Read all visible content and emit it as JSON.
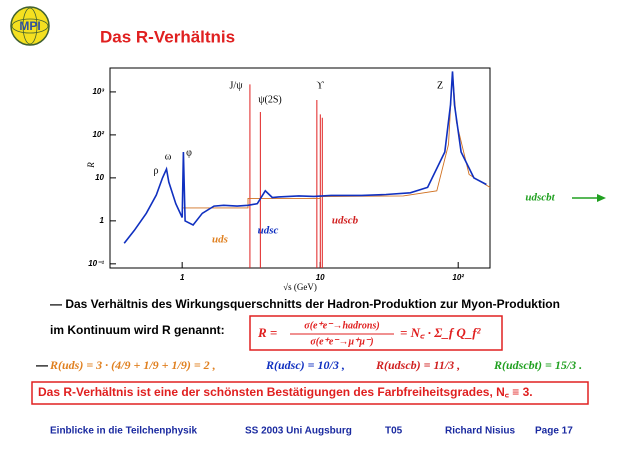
{
  "header": {
    "logo": "MPI",
    "title": "Das R-Verhältnis"
  },
  "chart_data": {
    "type": "line",
    "xlabel": "√s (GeV)",
    "ylabel": "R",
    "log_x": true,
    "log_y": true,
    "xlim": [
      0.3,
      170
    ],
    "ylim": [
      0.08,
      3600
    ],
    "xticks": [
      1,
      10,
      {
        "value": 100,
        "label": "10²"
      }
    ],
    "yticks": [
      {
        "value": 0.1,
        "label": "10⁻¹"
      },
      1,
      10,
      {
        "value": 100,
        "label": "10²"
      },
      {
        "value": 1000,
        "label": "10³"
      }
    ],
    "series": [
      {
        "color": "#1030c0",
        "x": [
          0.38,
          0.45,
          0.55,
          0.65,
          0.72,
          0.77,
          0.8,
          0.9,
          1.0,
          1.02,
          1.05,
          1.2,
          1.4,
          1.7,
          2.0,
          2.5,
          3.0,
          3.5,
          4.0,
          4.5,
          5,
          7,
          9,
          12,
          20,
          30,
          45,
          60,
          80,
          88,
          91,
          94,
          105,
          130,
          160
        ],
        "values": [
          0.3,
          0.6,
          1.5,
          4,
          10,
          16,
          8,
          2.5,
          1.2,
          40,
          1.0,
          0.8,
          1.5,
          2.2,
          2.3,
          2.2,
          2.3,
          2.5,
          5,
          3.5,
          3.6,
          3.8,
          3.7,
          3.9,
          3.9,
          4.1,
          4.5,
          6,
          40,
          500,
          3000,
          500,
          40,
          10,
          7
        ]
      },
      {
        "color": "#d07020",
        "x": [
          1,
          3,
          3,
          10,
          10,
          40,
          70,
          85,
          91,
          97,
          120,
          170
        ],
        "values": [
          2,
          2,
          3.33,
          3.33,
          3.67,
          3.8,
          5,
          60,
          2900,
          200,
          12,
          6
        ]
      }
    ],
    "resonances": {
      "color": "#e02020",
      "x": [
        3.097,
        3.686,
        9.46,
        10.02,
        10.36
      ],
      "values": [
        1500,
        340,
        650,
        300,
        250
      ]
    },
    "annotations": [
      "J/ψ",
      "ψ(2S)",
      "ϒ",
      "Z",
      "ρ",
      "ω",
      "φ"
    ],
    "regions": [
      {
        "text": "uds",
        "color": "#e08020"
      },
      {
        "text": "udsc",
        "color": "#1030c0"
      },
      {
        "text": "udscb",
        "color": "#d02020"
      },
      {
        "text": "udscbt",
        "color": "#20a020"
      }
    ]
  },
  "body": {
    "line1": "— Das Verhältnis des Wirkungsquerschnitts der Hadron-Produktion zur Myon-Produktion",
    "line2": "im Kontinuum wird R genannt:",
    "formula": {
      "lhs": "R =",
      "numerator": "σ(e⁺e⁻→hadrons)",
      "denominator": "σ(e⁺e⁻→μ⁺μ⁻)",
      "rhs": "= N꜀ · Σ_f Q_f²"
    },
    "dash": "—",
    "line3": [
      {
        "text": "R(uds) = 3 · (4/9 + 1/9 + 1/9) = 2 ,",
        "color": "#e08020"
      },
      {
        "text": "R(udsc) = 10/3 ,",
        "color": "#1030c0"
      },
      {
        "text": "R(udscb) = 11/3 ,",
        "color": "#d02020"
      },
      {
        "text": "R(udscbt) = 15/3 .",
        "color": "#20a020"
      }
    ],
    "conclusion": "Das R-Verhältnis ist eine der schönsten Bestätigungen des Farbfreiheitsgrades, N꜀ ≡ 3."
  },
  "footer": [
    "Einblicke in die Teilchenphysik",
    "SS 2003 Uni Augsburg",
    "T05",
    "Richard Nisius",
    "Page 17"
  ]
}
